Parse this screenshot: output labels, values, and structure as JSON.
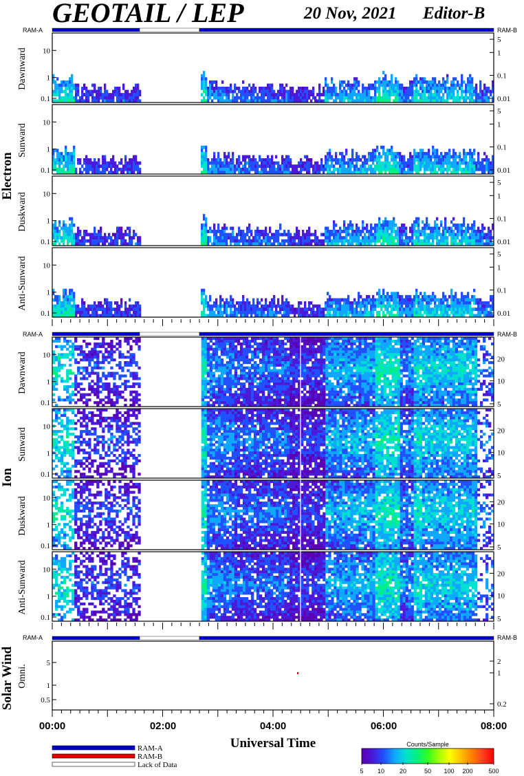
{
  "header": {
    "title": "GEOTAIL / LEP",
    "date": "20 Nov, 2021",
    "editor": "Editor-B"
  },
  "ram": {
    "a": "RAM-A",
    "b": "RAM-B"
  },
  "groups": {
    "electron": "Electron",
    "ion": "Ion",
    "solar_wind": "Solar Wind"
  },
  "panels": {
    "e1": "Dawnward",
    "e2": "Sunward",
    "e3": "Duskward",
    "e4": "Anti-Sunward",
    "i1": "Dawnward",
    "i2": "Sunward",
    "i3": "Duskward",
    "i4": "Anti-Sunward",
    "sw": "Omni."
  },
  "legend": {
    "ram_a": "RAM-A",
    "ram_b": "RAM-B",
    "lack": "Lack of Data"
  },
  "colorbar": {
    "title": "Counts/Sample",
    "ticks": [
      "5",
      "10",
      "20",
      "50",
      "100",
      "200",
      "500"
    ],
    "stops": [
      "#5a00b4",
      "#4a1ad8",
      "#2050ff",
      "#10a8ff",
      "#00e0d0",
      "#00f080",
      "#30ff20",
      "#a0ff00",
      "#ffff00",
      "#ffc000",
      "#ff8000",
      "#ff4020",
      "#ff0000"
    ]
  },
  "colors": {
    "ram_a": "#0000c8",
    "ram_b": "#e00000",
    "lack": "#ffffff"
  },
  "chart_data": {
    "type": "heatmap",
    "xlabel": "Universal Time",
    "xticks": [
      "00:00",
      "02:00",
      "04:00",
      "06:00",
      "08:00"
    ],
    "xlim": [
      "00:00",
      "08:00"
    ],
    "data_gap": [
      "01:35",
      "02:40"
    ],
    "electron_left_ticks": [
      "10",
      "1",
      "0.1"
    ],
    "electron_right_ticks": [
      "5",
      "1",
      "0.1",
      "0.01"
    ],
    "ion_left_ticks": [
      "10",
      "1",
      "0.1"
    ],
    "ion_right_ticks": [
      "20",
      "10",
      "5"
    ],
    "sw_left_ticks": [
      "5",
      "1",
      "0.5"
    ],
    "sw_right_ticks": [
      "2",
      "1",
      "0.2"
    ],
    "color_scale": {
      "label": "Counts/Sample",
      "min": 5,
      "max": 500,
      "scale": "log"
    },
    "ram_mode": [
      {
        "from": "00:00",
        "to": "01:35",
        "mode": "RAM-A"
      },
      {
        "from": "01:35",
        "to": "02:40",
        "mode": "Lack of Data"
      },
      {
        "from": "02:40",
        "to": "08:00",
        "mode": "RAM-A"
      }
    ]
  }
}
